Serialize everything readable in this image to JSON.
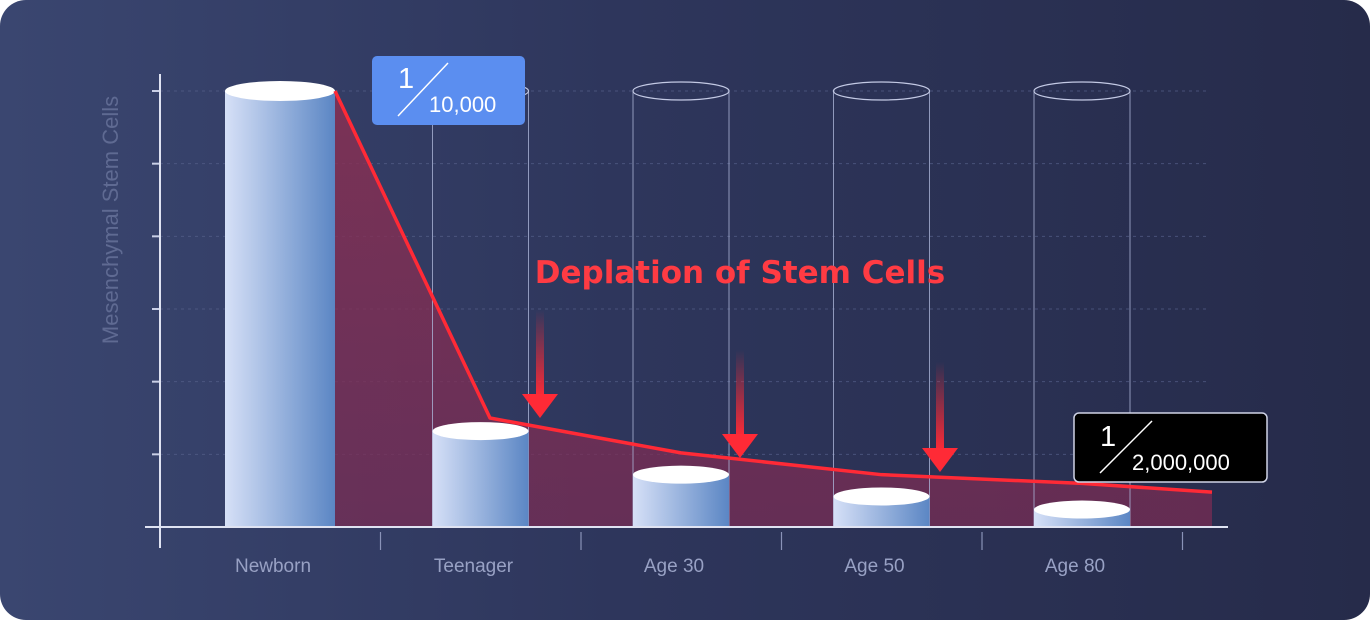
{
  "chart_data": {
    "type": "bar",
    "title": "Deplation of Stem Cells",
    "ylabel": "Mesenchymal Stem Cells",
    "xlabel": "",
    "categories": [
      "Newborn",
      "Teenager",
      "Age 30",
      "Age 50",
      "Age 80"
    ],
    "values": [
      100,
      22,
      12,
      7,
      4
    ],
    "ylim": [
      0,
      120
    ],
    "trend_line": [
      100,
      25,
      17,
      12,
      10,
      8
    ],
    "grid": true,
    "callouts": [
      {
        "numerator": "1",
        "denominator": "10,000",
        "category": "Newborn",
        "style": "blue"
      },
      {
        "numerator": "1",
        "denominator": "2,000,000",
        "category": "Age 80",
        "style": "black"
      }
    ],
    "colors": {
      "bar_light": "#d6e0f7",
      "bar_dark": "#5b86c4",
      "trend": "#ff2a36",
      "fill": "#8c2f52",
      "callout_blue": "#5b8ef0",
      "callout_black": "#000000"
    }
  }
}
